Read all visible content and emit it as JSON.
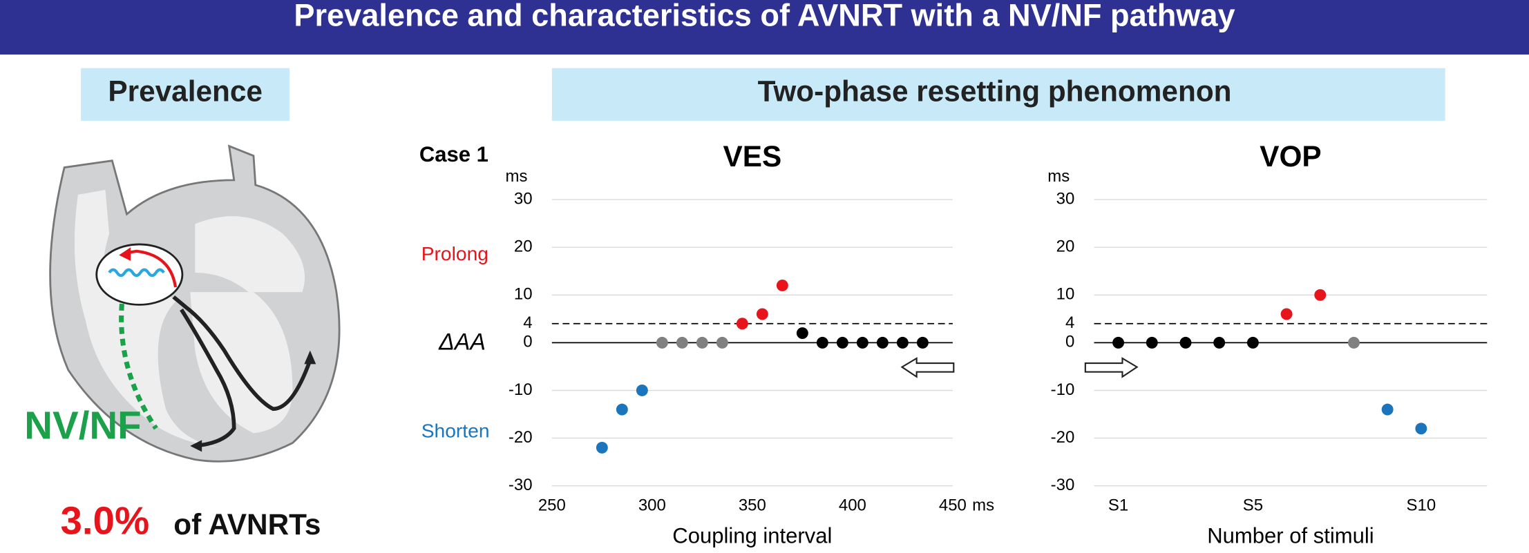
{
  "header": {
    "title": "Prevalence and characteristics of AVNRT with a NV/NF pathway"
  },
  "prevalence": {
    "heading": "Prevalence",
    "label": "NV/NF",
    "value": "3.0%",
    "caption": "of AVNRTs"
  },
  "resetting": {
    "heading": "Two-phase resetting phenomenon",
    "case": "Case 1",
    "y_label": "ΔAA",
    "prolong": "Prolong",
    "shorten": "Shorten"
  },
  "chart_data": [
    {
      "type": "scatter",
      "title": "VES",
      "y_unit": "ms",
      "x_unit": "ms",
      "x_label": "Coupling interval",
      "x": [
        275,
        285,
        295,
        305,
        315,
        325,
        335,
        345,
        355,
        365,
        375,
        385,
        395,
        405,
        415,
        425,
        435
      ],
      "values": [
        -22,
        -14,
        -10,
        0,
        0,
        0,
        0,
        4,
        6,
        12,
        2,
        0,
        0,
        0,
        0,
        0,
        0
      ],
      "colors": [
        "#1b75bc",
        "#1b75bc",
        "#1b75bc",
        "#808080",
        "#808080",
        "#808080",
        "#808080",
        "#e8141b",
        "#e8141b",
        "#e8141b",
        "#000000",
        "#000000",
        "#000000",
        "#000000",
        "#000000",
        "#000000",
        "#000000"
      ],
      "xlim": [
        250,
        450
      ],
      "xticks": [
        250,
        300,
        350,
        400,
        450
      ],
      "ylim": [
        -30,
        30
      ],
      "yticks": [
        -30,
        -20,
        -10,
        0,
        4,
        10,
        20,
        30
      ],
      "reference_lines": [
        {
          "value": 4,
          "style": "dashed"
        },
        {
          "value": 0,
          "style": "solid"
        }
      ],
      "grid": true
    },
    {
      "type": "scatter",
      "title": "VOP",
      "y_unit": "ms",
      "x_label": "Number of stimuli",
      "x": [
        1,
        2,
        3,
        4,
        5,
        6,
        7,
        8,
        9,
        10
      ],
      "values": [
        0,
        0,
        0,
        0,
        0,
        6,
        10,
        0,
        -14,
        -18
      ],
      "colors": [
        "#000000",
        "#000000",
        "#000000",
        "#000000",
        "#000000",
        "#e8141b",
        "#e8141b",
        "#808080",
        "#1b75bc",
        "#1b75bc"
      ],
      "xlim": [
        0.28,
        11.96
      ],
      "xticks": [
        {
          "value": 1,
          "label": "S1"
        },
        {
          "value": 5,
          "label": "S5"
        },
        {
          "value": 10,
          "label": "S10"
        }
      ],
      "ylim": [
        -30,
        30
      ],
      "yticks": [
        -30,
        -20,
        -10,
        0,
        4,
        10,
        20,
        30
      ],
      "reference_lines": [
        {
          "value": 4,
          "style": "dashed"
        },
        {
          "value": 0,
          "style": "solid"
        }
      ],
      "grid": true
    }
  ]
}
